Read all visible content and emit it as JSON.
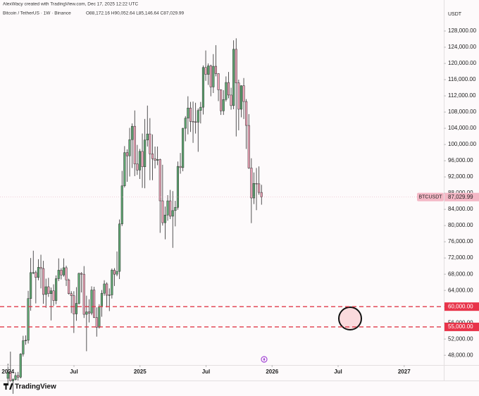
{
  "chart_data": {
    "type": "candlestick",
    "credit": "AlexWacy created with TradingView.com, Dec 17, 2025 12:22 UTC",
    "title": "Bitcoin / TetherUS · 1W · Binance",
    "ohlc_text": "O88,172.16 H90,052.64 L85,146.64 C87,029.99",
    "currency": "USDT",
    "brand": "TradingView",
    "up_color": "#5fa872",
    "down_color": "#eba2b6",
    "wick_color": "#2b2b2b",
    "xlim": [
      2023.94,
      2027.3
    ],
    "xticks": [
      {
        "value": 2024,
        "label": "2024"
      },
      {
        "value": 2024.5,
        "label": "Jul"
      },
      {
        "value": 2025,
        "label": "2025"
      },
      {
        "value": 2025.5,
        "label": "Jul"
      },
      {
        "value": 2026,
        "label": "2026"
      },
      {
        "value": 2026.5,
        "label": "Jul"
      },
      {
        "value": 2027,
        "label": "2027"
      }
    ],
    "ylim": [
      45600,
      135650
    ],
    "yticks": [
      {
        "value": 48000,
        "label": "48,000.00"
      },
      {
        "value": 52000,
        "label": "52,000.00"
      },
      {
        "value": 56000,
        "label": "56,000.00"
      },
      {
        "value": 60000,
        "label": "60,000.00"
      },
      {
        "value": 64000,
        "label": "64,000.00"
      },
      {
        "value": 68000,
        "label": "68,000.00"
      },
      {
        "value": 72000,
        "label": "72,000.00"
      },
      {
        "value": 76000,
        "label": "76,000.00"
      },
      {
        "value": 80000,
        "label": "80,000.00"
      },
      {
        "value": 84000,
        "label": "84,000.00"
      },
      {
        "value": 88000,
        "label": "88,000.00"
      },
      {
        "value": 92000,
        "label": "92,000.00"
      },
      {
        "value": 96000,
        "label": "96,000.00"
      },
      {
        "value": 100000,
        "label": "100,000.00"
      },
      {
        "value": 104000,
        "label": "104,000.00"
      },
      {
        "value": 108000,
        "label": "108,000.00"
      },
      {
        "value": 112000,
        "label": "112,000.00"
      },
      {
        "value": 116000,
        "label": "116,000.00"
      },
      {
        "value": 120000,
        "label": "120,000.00"
      },
      {
        "value": 124000,
        "label": "124,000.00"
      },
      {
        "value": 128000,
        "label": "128,000.00"
      }
    ],
    "levels": [
      {
        "value": 60000,
        "label": "60,000.00"
      },
      {
        "value": 55000,
        "label": "55,000.00"
      }
    ],
    "last_price": {
      "name": "BTCUSDT",
      "value": 87029.99,
      "label": "87,029.99"
    },
    "x": [
      2024,
      2024.0192,
      2024.0384,
      2024.0576,
      2024.0768,
      2024.096,
      2024.1152,
      2024.1344,
      2024.1536,
      2024.1728,
      2024.192,
      2024.2112,
      2024.2304,
      2024.2496,
      2024.2688,
      2024.288,
      2024.3072,
      2024.3264,
      2024.3456,
      2024.3648,
      2024.384,
      2024.4032,
      2024.4224,
      2024.4416,
      2024.4608,
      2024.48,
      2024.4992,
      2024.5184,
      2024.5376,
      2024.5568,
      2024.576,
      2024.5952,
      2024.6144,
      2024.6336,
      2024.6528,
      2024.672,
      2024.6912,
      2024.7104,
      2024.7296,
      2024.7488,
      2024.768,
      2024.7872,
      2024.8064,
      2024.8256,
      2024.8448,
      2024.864,
      2024.8832,
      2024.9024,
      2024.9216,
      2024.9408,
      2024.96,
      2024.9792,
      2024.9984,
      2025.0176,
      2025.0368,
      2025.056,
      2025.0752,
      2025.0944,
      2025.1136,
      2025.1328,
      2025.152,
      2025.1712,
      2025.1904,
      2025.2096,
      2025.2288,
      2025.248,
      2025.2672,
      2025.2864,
      2025.3056,
      2025.3248,
      2025.344,
      2025.3632,
      2025.3824,
      2025.4016,
      2025.4208,
      2025.44,
      2025.4592,
      2025.4784,
      2025.4976,
      2025.5168,
      2025.536,
      2025.5552,
      2025.5744,
      2025.5936,
      2025.6128,
      2025.632,
      2025.6512,
      2025.6704,
      2025.6896,
      2025.7088,
      2025.728,
      2025.7472,
      2025.7664,
      2025.7856,
      2025.8048,
      2025.824,
      2025.8432,
      2025.8624,
      2025.8816,
      2025.9008,
      2025.92
    ],
    "open": [
      42300,
      43900,
      41700,
      42000,
      43000,
      42600,
      48300,
      51600,
      51700,
      62000,
      68400,
      68400,
      67200,
      69700,
      69400,
      63000,
      64900,
      63200,
      63900,
      61500,
      66900,
      69000,
      67800,
      69600,
      66600,
      63200,
      62700,
      58200,
      60800,
      68200,
      68000,
      58100,
      58700,
      58400,
      64100,
      57300,
      54900,
      60000,
      63300,
      65600,
      62800,
      62900,
      69000,
      68000,
      68700,
      80400,
      89800,
      98000,
      97200,
      101200,
      104500,
      95200,
      93700,
      98300,
      94500,
      101100,
      102600,
      97700,
      96500,
      96100,
      96300,
      86100,
      80700,
      82600,
      86100,
      82300,
      83700,
      84500,
      94600,
      94300,
      104000,
      106500,
      109000,
      105700,
      105600,
      105500,
      108400,
      109200,
      119000,
      117300,
      119400,
      114200,
      119300,
      117500,
      113500,
      108300,
      111100,
      115300,
      112200,
      109600,
      123500,
      115200,
      108700,
      114500,
      110600,
      104700,
      94200,
      86800,
      90400,
      90300,
      88172.16
    ],
    "high": [
      45900,
      48900,
      42300,
      43800,
      43900,
      48500,
      52800,
      52900,
      63900,
      72000,
      73800,
      68900,
      71700,
      72800,
      71300,
      66900,
      67100,
      64700,
      65500,
      67700,
      71900,
      69500,
      71900,
      70100,
      66900,
      63800,
      63800,
      64800,
      68400,
      68500,
      70000,
      62700,
      61800,
      65000,
      64900,
      59800,
      60600,
      64100,
      66500,
      66000,
      64500,
      69400,
      69500,
      73600,
      81500,
      93500,
      99600,
      98800,
      104100,
      105200,
      108400,
      99900,
      98900,
      102700,
      106300,
      109600,
      106500,
      102500,
      99500,
      99500,
      96500,
      95000,
      84700,
      87500,
      88800,
      88500,
      86100,
      95800,
      97900,
      104100,
      107000,
      111900,
      110500,
      110600,
      110300,
      108900,
      110500,
      119500,
      123200,
      120000,
      119700,
      122300,
      124500,
      117600,
      113600,
      113400,
      116800,
      117900,
      114000,
      125700,
      126200,
      116000,
      114600,
      116400,
      111200,
      107500,
      96600,
      93100,
      94200,
      94600,
      90052.64
    ],
    "low": [
      40800,
      41500,
      38500,
      41800,
      41800,
      42300,
      47700,
      50600,
      50900,
      59000,
      68000,
      60800,
      66500,
      64500,
      60700,
      59700,
      62400,
      56600,
      60200,
      60600,
      66300,
      66700,
      67400,
      65100,
      63000,
      58400,
      53500,
      56500,
      60500,
      63500,
      57200,
      49000,
      56100,
      57900,
      57200,
      52600,
      54600,
      57500,
      62700,
      59800,
      58900,
      62000,
      65100,
      67500,
      66800,
      79900,
      89400,
      90800,
      92100,
      94200,
      92200,
      92500,
      91500,
      89300,
      89200,
      99500,
      91200,
      91200,
      94100,
      94900,
      78200,
      80000,
      76600,
      81200,
      81600,
      74500,
      79800,
      83900,
      92800,
      93400,
      100800,
      102500,
      103100,
      100400,
      102700,
      98200,
      105200,
      107400,
      115700,
      114700,
      111900,
      112700,
      116800,
      110700,
      107300,
      107300,
      110600,
      111400,
      108600,
      108700,
      102000,
      103500,
      106700,
      106300,
      98900,
      94000,
      80600,
      85300,
      83800,
      87600,
      85146.64
    ],
    "close": [
      43900,
      41700,
      42000,
      43000,
      42600,
      48300,
      51600,
      51700,
      62000,
      68400,
      68400,
      67200,
      69700,
      69400,
      63000,
      64900,
      63200,
      63900,
      61500,
      66900,
      69000,
      67800,
      69600,
      66600,
      63200,
      62700,
      58200,
      60800,
      68200,
      68000,
      58100,
      58700,
      58400,
      64100,
      57300,
      54900,
      60000,
      63300,
      65600,
      62800,
      62900,
      69000,
      68000,
      68700,
      80400,
      89800,
      98000,
      97200,
      101200,
      104500,
      95200,
      93700,
      98300,
      94500,
      101100,
      102600,
      97700,
      96500,
      96100,
      96300,
      86100,
      80700,
      82600,
      86100,
      82300,
      83700,
      84500,
      94600,
      94300,
      104000,
      106500,
      109000,
      105700,
      105600,
      105500,
      108400,
      109200,
      119000,
      117300,
      119400,
      114200,
      119300,
      117500,
      113500,
      108300,
      111100,
      115300,
      112200,
      109600,
      123500,
      115200,
      108700,
      114500,
      110600,
      104700,
      94200,
      86800,
      90400,
      90300,
      88172.16,
      87029.99
    ]
  }
}
